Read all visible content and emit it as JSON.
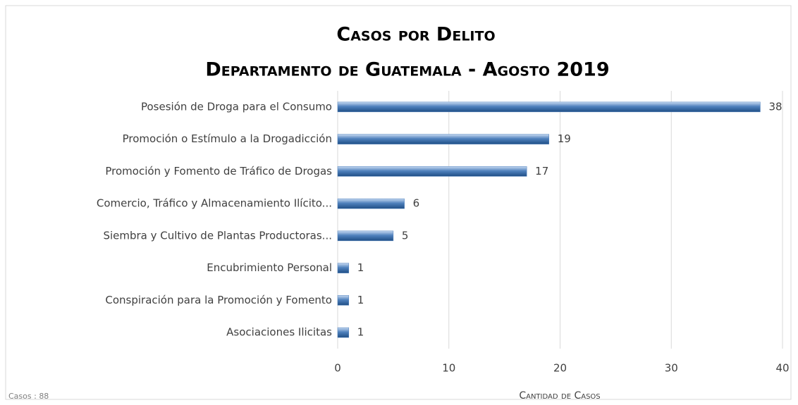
{
  "chart_data": {
    "type": "bar",
    "orientation": "horizontal",
    "title": "Casos por Delito",
    "subtitle": "Departamento de Guatemala - Agosto 2019",
    "x_label": "Cantidad de Casos",
    "annotation": "Casos : 88",
    "categories": [
      "Posesión de Droga para el Consumo",
      "Promoción o Estímulo a la Drogadicción",
      "Promoción y Fomento de Tráfico de Drogas",
      "Comercio, Tráfico y Almacenamiento Ilícito...",
      "Siembra y Cultivo de Plantas Productoras...",
      "Encubrimiento Personal",
      "Conspiración para la Promoción y Fomento",
      "Asociaciones Ilicitas"
    ],
    "values": [
      38,
      19,
      17,
      6,
      5,
      1,
      1,
      1
    ],
    "color": "#4f81bd",
    "xlim": [
      0,
      40
    ],
    "xticks": [
      0,
      10,
      20,
      30,
      40
    ],
    "grid": true
  }
}
